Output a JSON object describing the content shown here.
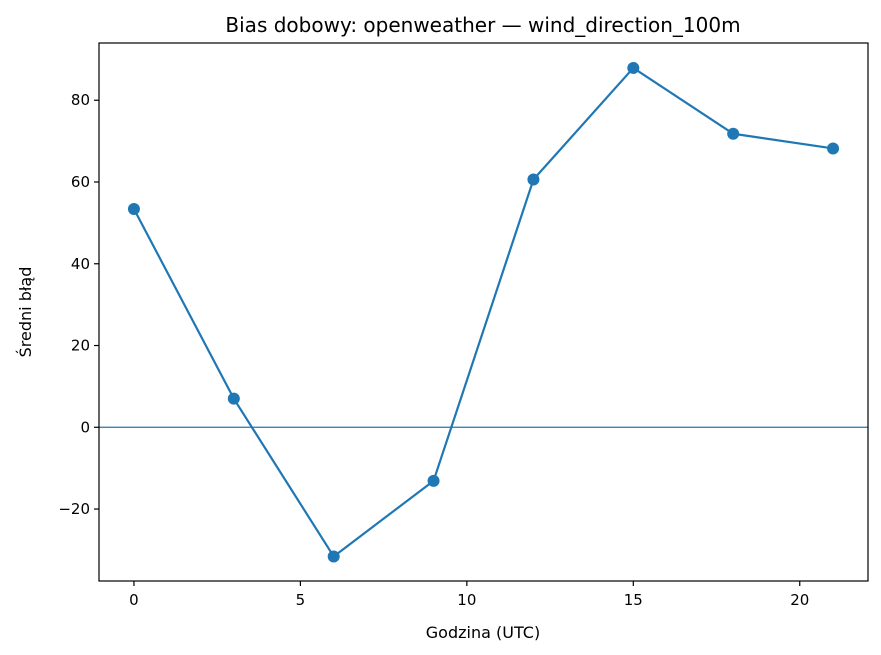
{
  "chart_data": {
    "type": "line",
    "title": "Bias dobowy: openweather — wind_direction_100m",
    "xlabel": "Godzina (UTC)",
    "ylabel": "Średni błąd",
    "x": [
      0,
      3,
      6,
      9,
      12,
      15,
      18,
      21
    ],
    "series": [
      {
        "values": [
          53.4,
          7.0,
          -31.6,
          -13.1,
          60.6,
          87.9,
          71.8,
          68.2
        ],
        "color": "#1f77b4"
      }
    ],
    "xlim": [
      -1.05,
      22.05
    ],
    "ylim": [
      -37.6,
      94.0
    ],
    "xticks": [
      0,
      5,
      10,
      15,
      20
    ],
    "yticks": [
      -20,
      0,
      20,
      40,
      60,
      80
    ],
    "xtick_labels": [
      "0",
      "5",
      "10",
      "15",
      "20"
    ],
    "ytick_labels": [
      "−20",
      "0",
      "20",
      "40",
      "60",
      "80"
    ],
    "reference_line": {
      "y": 0,
      "color": "#1f77b4"
    },
    "grid": false,
    "marker": "circle"
  }
}
